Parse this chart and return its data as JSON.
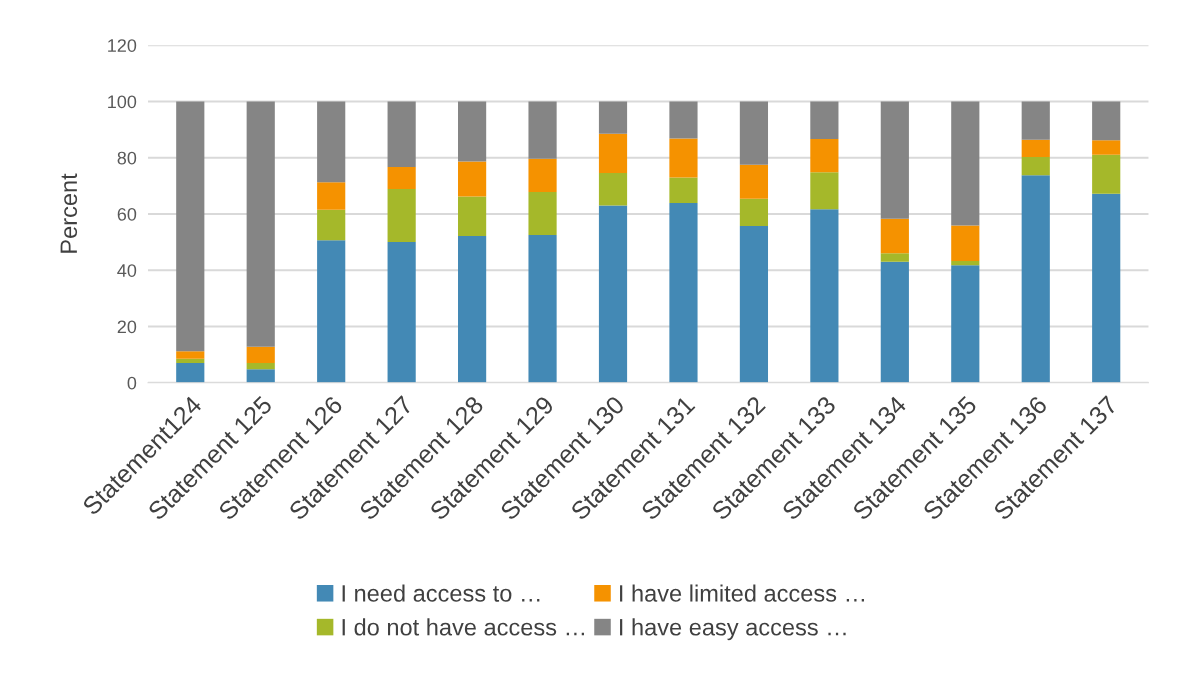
{
  "chart_data": {
    "type": "bar",
    "stacked": true,
    "ylabel": "Percent",
    "categories": [
      "Statement124",
      "Statement 125",
      "Statement 126",
      "Statement 127",
      "Statement 128",
      "Statement 129",
      "Statement 130",
      "Statement 131",
      "Statement 132",
      "Statement 133",
      "Statement 134",
      "Statement 135",
      "Statement 136",
      "Statement 137"
    ],
    "series": [
      {
        "name": "I need access to …",
        "color": "#4389b5",
        "values": [
          7.0,
          4.8,
          50.7,
          50.0,
          52.2,
          52.5,
          63.0,
          63.9,
          55.7,
          61.7,
          43.0,
          41.8,
          73.8,
          67.2
        ]
      },
      {
        "name": "I do not have access …",
        "color": "#a5b82a",
        "values": [
          1.5,
          2.2,
          10.8,
          18.9,
          14.0,
          15.3,
          11.6,
          9.1,
          9.7,
          13.1,
          3.0,
          1.5,
          6.5,
          13.9
        ]
      },
      {
        "name": "I have limited access …",
        "color": "#f59200",
        "values": [
          2.7,
          5.8,
          9.8,
          7.8,
          12.5,
          11.8,
          13.9,
          13.8,
          12.1,
          11.9,
          12.3,
          12.6,
          6.1,
          5.1
        ]
      },
      {
        "name": "I have easy access …",
        "color": "#858585",
        "values": [
          88.8,
          87.2,
          28.7,
          23.3,
          21.3,
          20.4,
          11.5,
          13.2,
          22.5,
          13.3,
          41.7,
          44.1,
          13.6,
          13.8
        ]
      }
    ],
    "ylim": [
      0,
      120
    ],
    "yticks": [
      0,
      20,
      40,
      60,
      80,
      100,
      120
    ],
    "grid": "y",
    "legend": "bottom"
  }
}
